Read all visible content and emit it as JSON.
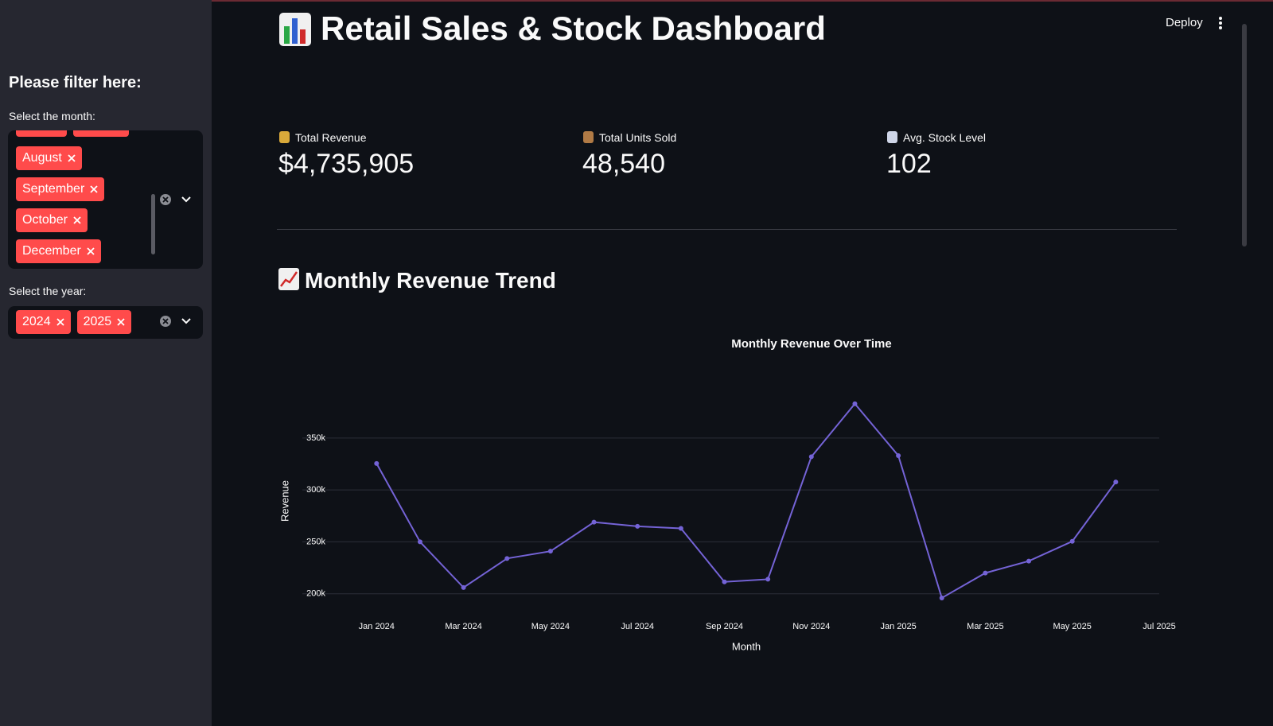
{
  "header": {
    "deploy": "Deploy"
  },
  "sidebar": {
    "heading": "Please filter here:",
    "month_label": "Select the month:",
    "months": [
      "August",
      "September",
      "October",
      "December"
    ],
    "year_label": "Select the year:",
    "years": [
      "2024",
      "2025"
    ]
  },
  "title": "Retail Sales & Stock Dashboard",
  "metrics": [
    {
      "label": "Total Revenue",
      "value": "$4,735,905"
    },
    {
      "label": "Total Units Sold",
      "value": "48,540"
    },
    {
      "label": "Avg. Stock Level",
      "value": "102"
    }
  ],
  "section_title": "Monthly Revenue Trend",
  "chart_data": {
    "type": "line",
    "title": "Monthly Revenue Over Time",
    "x_label": "Month",
    "y_label": "Revenue",
    "x": [
      "2024-01",
      "2024-02",
      "2024-03",
      "2024-04",
      "2024-05",
      "2024-06",
      "2024-07",
      "2024-08",
      "2024-09",
      "2024-10",
      "2024-11",
      "2024-12",
      "2025-01",
      "2025-02",
      "2025-03",
      "2025-04",
      "2025-05",
      "2025-06"
    ],
    "values": [
      325500,
      250000,
      206000,
      234000,
      241000,
      269000,
      265000,
      263000,
      211500,
      214000,
      332000,
      383000,
      333000,
      196000,
      220000,
      231500,
      250500,
      307700
    ],
    "color": "#7463d6",
    "xlim": [
      "2023-11",
      "2025-07"
    ],
    "xticks": [
      {
        "value": "2024-01",
        "label": "Jan 2024"
      },
      {
        "value": "2024-03",
        "label": "Mar 2024"
      },
      {
        "value": "2024-05",
        "label": "May 2024"
      },
      {
        "value": "2024-07",
        "label": "Jul 2024"
      },
      {
        "value": "2024-09",
        "label": "Sep 2024"
      },
      {
        "value": "2024-11",
        "label": "Nov 2024"
      },
      {
        "value": "2025-01",
        "label": "Jan 2025"
      },
      {
        "value": "2025-03",
        "label": "Mar 2025"
      },
      {
        "value": "2025-05",
        "label": "May 2025"
      },
      {
        "value": "2025-07",
        "label": "Jul 2025"
      }
    ],
    "ylim": [
      186000,
      392000
    ],
    "yticks": [
      {
        "value": 200000,
        "label": "200k"
      },
      {
        "value": 250000,
        "label": "250k"
      },
      {
        "value": 300000,
        "label": "300k"
      },
      {
        "value": 350000,
        "label": "350k"
      }
    ],
    "grid": true
  }
}
